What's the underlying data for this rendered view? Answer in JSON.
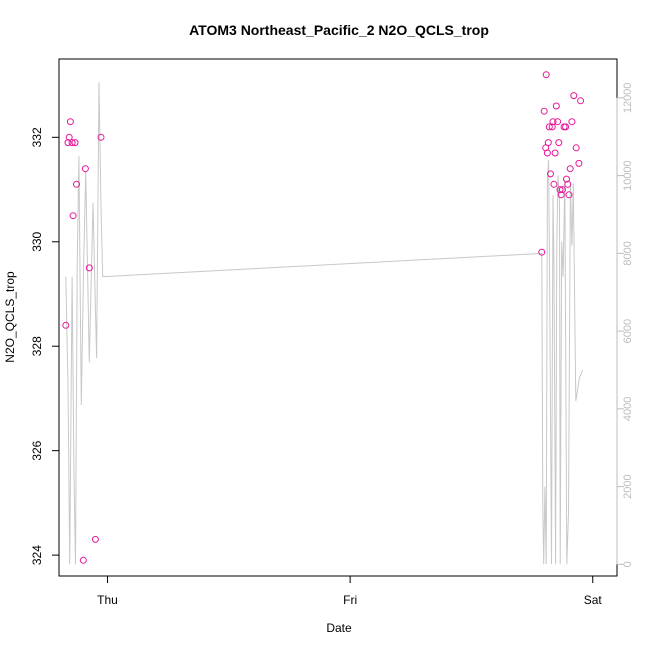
{
  "chart_data": {
    "type": "scatter",
    "title": "ATOM3 Northeast_Pacific_2 N2O_QCLS_trop",
    "xlabel": "Date",
    "ylabel": "N2O_QCLS_trop",
    "x_ticks": [
      "Thu",
      "Fri",
      "Sat"
    ],
    "y_ticks": [
      324,
      326,
      328,
      330,
      332
    ],
    "y2_ticks": [
      0,
      2000,
      4000,
      6000,
      8000,
      10000,
      12000
    ],
    "xlim_days": [
      -0.2,
      2.1
    ],
    "ylim": [
      323.6,
      333.5
    ],
    "y2lim": [
      -300,
      13000
    ],
    "colors": {
      "points": "#e5199b",
      "altitude_line": "#c8c8c8",
      "right_axis": "#bdbdbd"
    },
    "series": [
      {
        "kind": "points",
        "axis": "left",
        "x": [
          -0.172,
          -0.163,
          -0.158,
          -0.153,
          -0.146,
          -0.142,
          -0.134,
          -0.128,
          -0.1,
          -0.091,
          -0.075,
          -0.05,
          -0.027,
          1.79,
          1.8,
          1.806,
          1.808,
          1.813,
          1.817,
          1.821,
          1.826,
          1.833,
          1.836,
          1.84,
          1.845,
          1.85,
          1.855,
          1.86,
          1.865,
          1.87,
          1.875,
          1.882,
          1.888,
          1.892,
          1.897,
          1.902,
          1.907,
          1.914,
          1.922,
          1.932,
          1.943,
          1.95
        ],
        "y": [
          328.4,
          331.9,
          332.0,
          332.3,
          331.9,
          330.5,
          331.9,
          331.1,
          323.9,
          331.4,
          329.5,
          324.3,
          332.0,
          329.8,
          332.5,
          331.8,
          333.2,
          331.7,
          331.9,
          332.2,
          331.3,
          332.2,
          332.3,
          331.1,
          331.7,
          332.6,
          332.3,
          331.9,
          331.0,
          330.9,
          331.0,
          332.2,
          332.2,
          331.2,
          331.1,
          330.9,
          331.4,
          332.3,
          332.8,
          331.8,
          331.5,
          332.7
        ]
      },
      {
        "kind": "line",
        "axis": "right",
        "x": [
          -0.172,
          -0.163,
          -0.156,
          -0.146,
          -0.138,
          -0.132,
          -0.125,
          -0.118,
          -0.108,
          -0.098,
          -0.09,
          -0.075,
          -0.06,
          -0.045,
          -0.035,
          -0.027,
          -0.02,
          1.79,
          1.794,
          1.798,
          1.803,
          1.808,
          1.813,
          1.818,
          1.823,
          1.83,
          1.836,
          1.84,
          1.847,
          1.852,
          1.857,
          1.863,
          1.866,
          1.872,
          1.878,
          1.885,
          1.893,
          1.9,
          1.908,
          1.914,
          1.92,
          1.93,
          1.945,
          1.952,
          1.958
        ],
        "y": [
          7400,
          4600,
          0,
          7400,
          2300,
          0,
          7700,
          10500,
          4100,
          7800,
          10100,
          5200,
          9300,
          5300,
          12400,
          9200,
          7400,
          8000,
          1500,
          0,
          2000,
          0,
          9900,
          10400,
          6700,
          0,
          9500,
          7900,
          0,
          8200,
          10000,
          9300,
          0,
          8300,
          7400,
          9900,
          0,
          1300,
          9800,
          8200,
          9800,
          4200,
          4800,
          4900,
          5000
        ]
      }
    ]
  }
}
